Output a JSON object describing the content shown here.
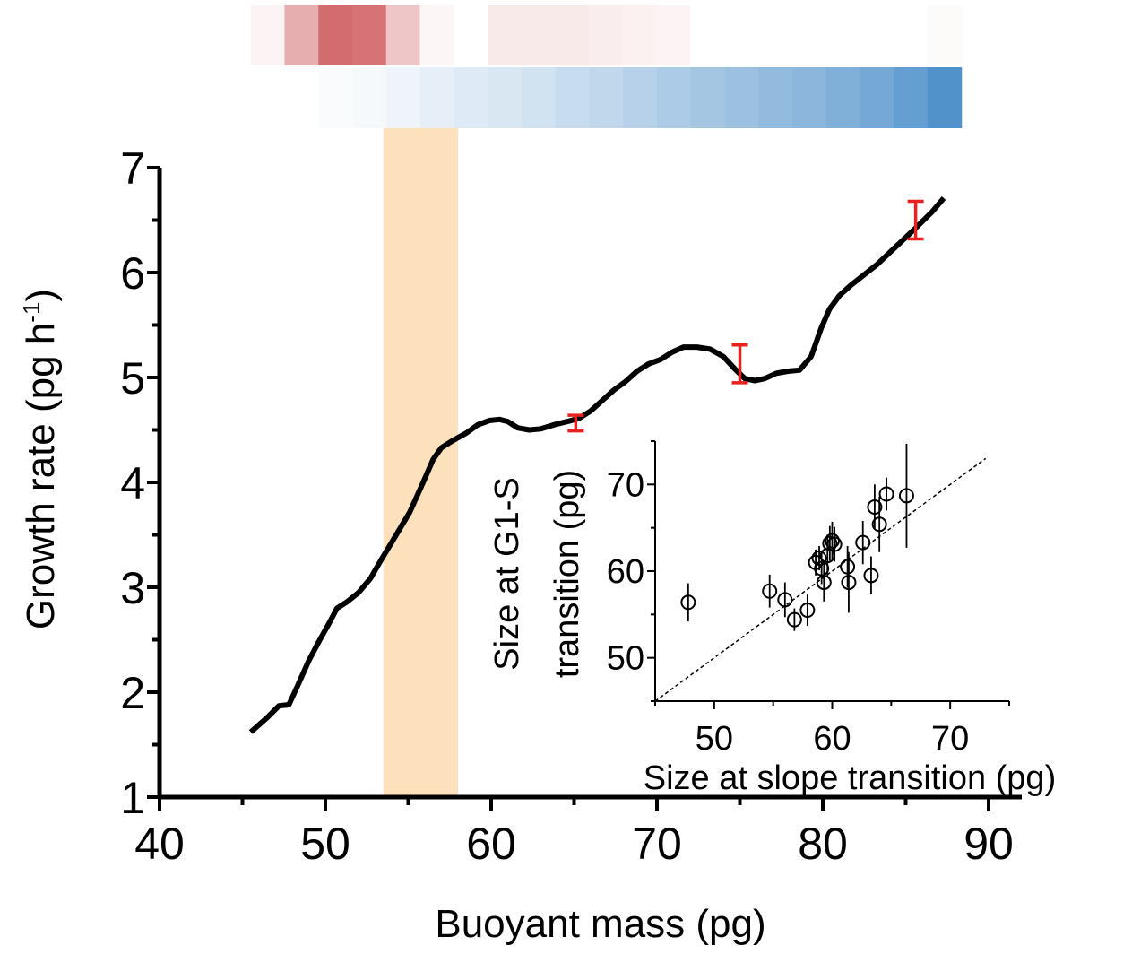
{
  "chart_data": [
    {
      "type": "line",
      "xlabel": "Buoyant mass (pg)",
      "ylabel_main": "Growth rate (pg h",
      "ylabel_sup": "-1",
      "ylabel_tail": ")",
      "xlim": [
        40,
        92
      ],
      "ylim": [
        1,
        7
      ],
      "xticks": [
        40,
        50,
        60,
        70,
        80,
        90
      ],
      "yticks": [
        1,
        2,
        3,
        4,
        5,
        6,
        7
      ],
      "xtick_labels": [
        "40",
        "50",
        "60",
        "70",
        "80",
        "90"
      ],
      "ytick_labels": [
        "1",
        "2",
        "3",
        "4",
        "5",
        "6",
        "7"
      ],
      "grid": false,
      "line_color": "#000000",
      "series": [
        {
          "x": [
            45.5,
            46.5,
            47.2,
            47.8,
            48.3,
            49.0,
            49.6,
            50.2,
            50.7,
            51.3,
            52.0,
            52.7,
            53.4,
            54.2,
            55.1,
            55.9,
            56.5,
            57.0,
            57.7,
            58.5,
            59.2,
            59.9,
            60.5,
            61.0,
            61.6,
            62.3,
            63.0,
            63.8,
            64.6,
            65.3,
            66.0,
            66.7,
            67.4,
            68.1,
            68.8,
            69.5,
            70.2,
            70.9,
            71.6,
            72.4,
            73.2,
            74.0,
            74.7,
            75.3,
            75.9,
            76.5,
            77.2,
            77.9,
            78.6,
            79.3,
            79.9,
            80.4,
            81.0,
            81.7,
            82.5,
            83.3,
            84.1,
            84.9,
            85.7,
            86.6,
            87.3
          ],
          "y": [
            1.62,
            1.76,
            1.87,
            1.88,
            2.05,
            2.3,
            2.48,
            2.65,
            2.8,
            2.86,
            2.95,
            3.08,
            3.27,
            3.48,
            3.72,
            4.0,
            4.22,
            4.33,
            4.4,
            4.47,
            4.55,
            4.59,
            4.6,
            4.58,
            4.52,
            4.5,
            4.51,
            4.55,
            4.58,
            4.61,
            4.68,
            4.78,
            4.88,
            4.96,
            5.06,
            5.13,
            5.17,
            5.24,
            5.29,
            5.29,
            5.27,
            5.2,
            5.08,
            4.99,
            4.97,
            4.99,
            5.04,
            5.06,
            5.07,
            5.2,
            5.47,
            5.65,
            5.78,
            5.88,
            5.98,
            6.08,
            6.2,
            6.32,
            6.44,
            6.58,
            6.71
          ]
        }
      ],
      "error_bars": {
        "color": "#e8201e",
        "points": [
          {
            "x": 65.1,
            "y": 4.56,
            "low": 4.49,
            "high": 4.64
          },
          {
            "x": 75.0,
            "y": 5.13,
            "low": 4.95,
            "high": 5.31
          },
          {
            "x": 85.6,
            "y": 6.49,
            "low": 6.32,
            "high": 6.68
          }
        ]
      },
      "shaded_band": {
        "x_from": 53.5,
        "x_to": 58.0,
        "color": "#fde1bc"
      },
      "heatmap_strips": [
        {
          "name": "red",
          "x_start": 45.5,
          "bin_width": 2.04,
          "color": "#c94c4f",
          "intensities": [
            0.06,
            0.45,
            0.82,
            0.78,
            0.32,
            0.05,
            0.0,
            0.12,
            0.12,
            0.12,
            0.1,
            0.08,
            0.06,
            0.0,
            0.0,
            0.0,
            0.0,
            0.0,
            0.0,
            0.0,
            0.03
          ]
        },
        {
          "name": "blue",
          "x_start": 49.6,
          "bin_width": 2.04,
          "color": "#3f86c4",
          "intensities": [
            0.03,
            0.05,
            0.09,
            0.13,
            0.17,
            0.2,
            0.24,
            0.29,
            0.33,
            0.38,
            0.43,
            0.47,
            0.52,
            0.56,
            0.6,
            0.66,
            0.72,
            0.8,
            0.9
          ]
        }
      ]
    },
    {
      "type": "scatter",
      "xlabel": "Size at slope transition (pg)",
      "ylabel_line1": "Size at G1-S",
      "ylabel_line2": "transition (pg)",
      "xlim": [
        45,
        75
      ],
      "ylim": [
        45,
        75
      ],
      "xticks": [
        50,
        60,
        70
      ],
      "yticks": [
        50,
        60,
        70
      ],
      "xtick_labels": [
        "50",
        "60",
        "70"
      ],
      "ytick_labels": [
        "50",
        "60",
        "70"
      ],
      "diagonal": {
        "from": 45,
        "to": 73,
        "style": "dashed"
      },
      "marker": "open-circle",
      "points": [
        {
          "x": 47.8,
          "y": 56.4,
          "err": 2.2
        },
        {
          "x": 54.7,
          "y": 57.7,
          "err": 1.9
        },
        {
          "x": 56.0,
          "y": 56.7,
          "err": 2.0
        },
        {
          "x": 56.8,
          "y": 54.4,
          "err": 1.3
        },
        {
          "x": 57.9,
          "y": 55.5,
          "err": 1.8
        },
        {
          "x": 58.6,
          "y": 61.0,
          "err": 1.5
        },
        {
          "x": 58.9,
          "y": 61.5,
          "err": 1.4
        },
        {
          "x": 59.1,
          "y": 60.3,
          "err": 1.8
        },
        {
          "x": 59.3,
          "y": 58.7,
          "err": 2.2
        },
        {
          "x": 59.6,
          "y": 61.8,
          "err": 2.4
        },
        {
          "x": 59.8,
          "y": 63.2,
          "err": 2.0
        },
        {
          "x": 60.0,
          "y": 63.5,
          "err": 2.2
        },
        {
          "x": 60.2,
          "y": 63.1,
          "err": 2.0
        },
        {
          "x": 61.3,
          "y": 60.5,
          "err": 2.4
        },
        {
          "x": 61.4,
          "y": 58.7,
          "err": 3.5
        },
        {
          "x": 62.6,
          "y": 63.3,
          "err": 2.5
        },
        {
          "x": 63.3,
          "y": 59.5,
          "err": 2.2
        },
        {
          "x": 63.6,
          "y": 67.4,
          "err": 2.6
        },
        {
          "x": 64.0,
          "y": 65.4,
          "err": 3.2
        },
        {
          "x": 64.6,
          "y": 68.9,
          "err": 1.9
        },
        {
          "x": 66.3,
          "y": 68.7,
          "err": 6.0
        }
      ]
    }
  ]
}
